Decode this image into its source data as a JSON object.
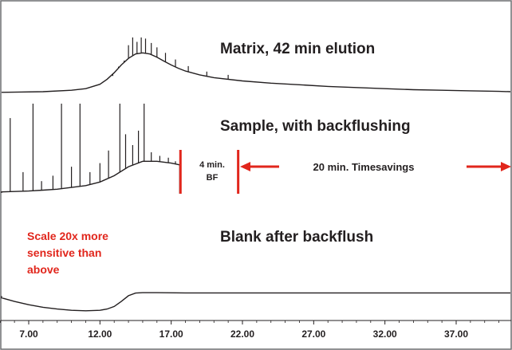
{
  "chart_data": {
    "type": "line",
    "xlim": [
      4.5,
      41.5
    ],
    "x_ticks": [
      "7.00",
      "12.00",
      "17.00",
      "22.00",
      "27.00",
      "32.00",
      "37.00"
    ],
    "colors": {
      "trace": "#231f20",
      "annotation": "#e1261c",
      "frame": "#6d6e71"
    },
    "series": [
      {
        "label": "Matrix, 42 min elution",
        "x": [
          4.6,
          6,
          8,
          10,
          11,
          12,
          12.5,
          13,
          13.5,
          14,
          14.5,
          15,
          15.5,
          16,
          16.5,
          17,
          17.5,
          18,
          19,
          20,
          22,
          24,
          26,
          28,
          30,
          32,
          34,
          36,
          38,
          40,
          41.5
        ],
        "y": [
          0.3,
          0.6,
          1.5,
          4,
          7,
          15,
          24,
          36,
          50,
          62,
          70,
          72,
          70,
          64,
          57,
          50,
          44,
          39,
          32,
          27,
          21,
          17,
          14,
          11,
          9,
          7,
          5,
          4,
          3,
          2,
          1.5
        ],
        "peaks": [
          {
            "x": 12.9,
            "y": 30
          },
          {
            "x": 13.3,
            "y": 47
          },
          {
            "x": 13.7,
            "y": 58
          },
          {
            "x": 14.0,
            "y": 86
          },
          {
            "x": 14.3,
            "y": 100
          },
          {
            "x": 14.6,
            "y": 92
          },
          {
            "x": 14.9,
            "y": 100
          },
          {
            "x": 15.2,
            "y": 98
          },
          {
            "x": 15.6,
            "y": 90
          },
          {
            "x": 16.0,
            "y": 82
          },
          {
            "x": 16.6,
            "y": 72
          },
          {
            "x": 17.3,
            "y": 60
          },
          {
            "x": 18.2,
            "y": 48
          },
          {
            "x": 19.5,
            "y": 38
          },
          {
            "x": 21.0,
            "y": 32
          }
        ]
      },
      {
        "label": "Sample, with backflushing",
        "x": [
          4.6,
          5,
          6,
          7,
          8,
          9,
          10,
          11,
          12,
          13,
          14,
          15,
          16,
          17,
          17.6,
          17.6
        ],
        "y": [
          1,
          2,
          2.5,
          3,
          4,
          5,
          7,
          9,
          13,
          20,
          30,
          36,
          36,
          34,
          32,
          0
        ],
        "peaks": [
          {
            "x": 5.7,
            "y": 84
          },
          {
            "x": 6.6,
            "y": 24
          },
          {
            "x": 7.3,
            "y": 100
          },
          {
            "x": 7.9,
            "y": 14
          },
          {
            "x": 8.7,
            "y": 20
          },
          {
            "x": 9.3,
            "y": 100
          },
          {
            "x": 10.0,
            "y": 30
          },
          {
            "x": 10.6,
            "y": 100
          },
          {
            "x": 11.3,
            "y": 24
          },
          {
            "x": 12.0,
            "y": 34
          },
          {
            "x": 12.6,
            "y": 48
          },
          {
            "x": 13.4,
            "y": 100
          },
          {
            "x": 13.8,
            "y": 66
          },
          {
            "x": 14.3,
            "y": 54
          },
          {
            "x": 14.7,
            "y": 70
          },
          {
            "x": 15.1,
            "y": 100
          },
          {
            "x": 15.6,
            "y": 46
          },
          {
            "x": 16.2,
            "y": 42
          },
          {
            "x": 16.8,
            "y": 40
          },
          {
            "x": 17.3,
            "y": 36
          }
        ]
      },
      {
        "label": "Blank after backflush",
        "x": [
          4.6,
          5,
          6,
          7,
          8,
          9,
          10,
          11,
          12,
          12.5,
          13,
          13.5,
          14,
          14.5,
          15,
          16,
          18,
          20,
          25,
          30,
          35,
          41.5
        ],
        "y": [
          80,
          72,
          55,
          40,
          28,
          20,
          14,
          12,
          14,
          20,
          32,
          55,
          82,
          94,
          96,
          96,
          95,
          95,
          95,
          95,
          95,
          95
        ]
      }
    ],
    "annotations": {
      "bf_label_1": "4 min.",
      "bf_label_2": "BF",
      "timesavings": "20 min. Timesavings",
      "scale_note": [
        "Scale 20x more",
        "sensitive than",
        "above"
      ],
      "bf_start_x": 17.65,
      "bf_end_x": 21.7
    }
  }
}
